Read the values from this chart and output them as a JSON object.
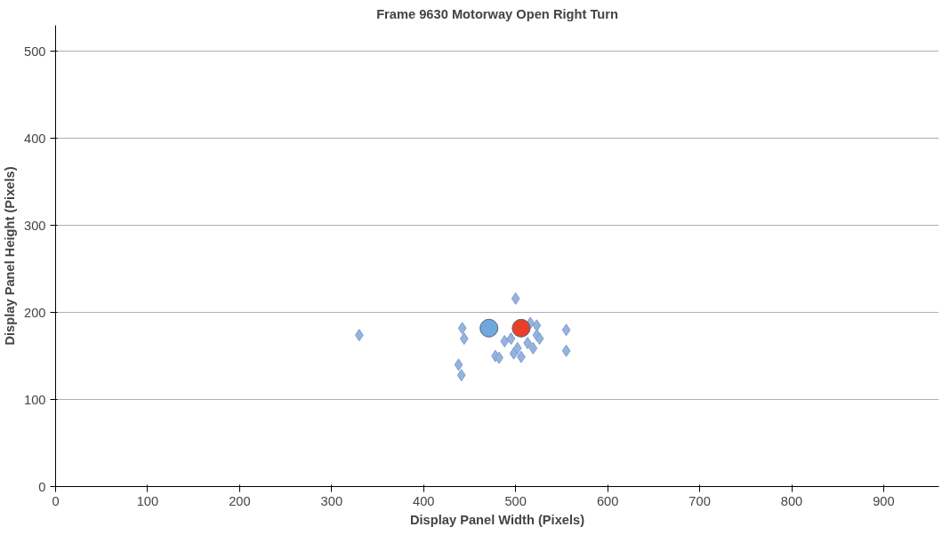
{
  "chart_data": {
    "type": "scatter",
    "title": "Frame 9630 Motorway Open Right Turn",
    "xlabel": "Display Panel Width (Pixels)",
    "ylabel": "Display Panel Height (Pixels)",
    "xlim": [
      0,
      960
    ],
    "xticks": [
      0,
      100,
      200,
      300,
      400,
      500,
      600,
      700,
      800,
      900
    ],
    "ylim": [
      0,
      530
    ],
    "yticks": [
      0,
      100,
      200,
      300,
      400,
      500
    ],
    "grid": "y",
    "series": [
      {
        "color": "#95b3e0",
        "marker": "diamond",
        "x": [
          330,
          442,
          444,
          438,
          441,
          478,
          482,
          555,
          555,
          488,
          495,
          498,
          506,
          513,
          516,
          523,
          523,
          526,
          519,
          502,
          500
        ],
        "values": [
          174,
          182,
          170,
          140,
          128,
          150,
          148,
          180,
          156,
          167,
          170,
          153,
          149,
          165,
          188,
          185,
          174,
          170,
          159,
          159,
          216
        ]
      },
      {
        "color": "#6fa8dc",
        "marker": "circle",
        "x": [
          471
        ],
        "values": [
          182
        ]
      },
      {
        "color": "#e8402a",
        "marker": "circle",
        "x": [
          506
        ],
        "values": [
          182
        ]
      }
    ]
  }
}
